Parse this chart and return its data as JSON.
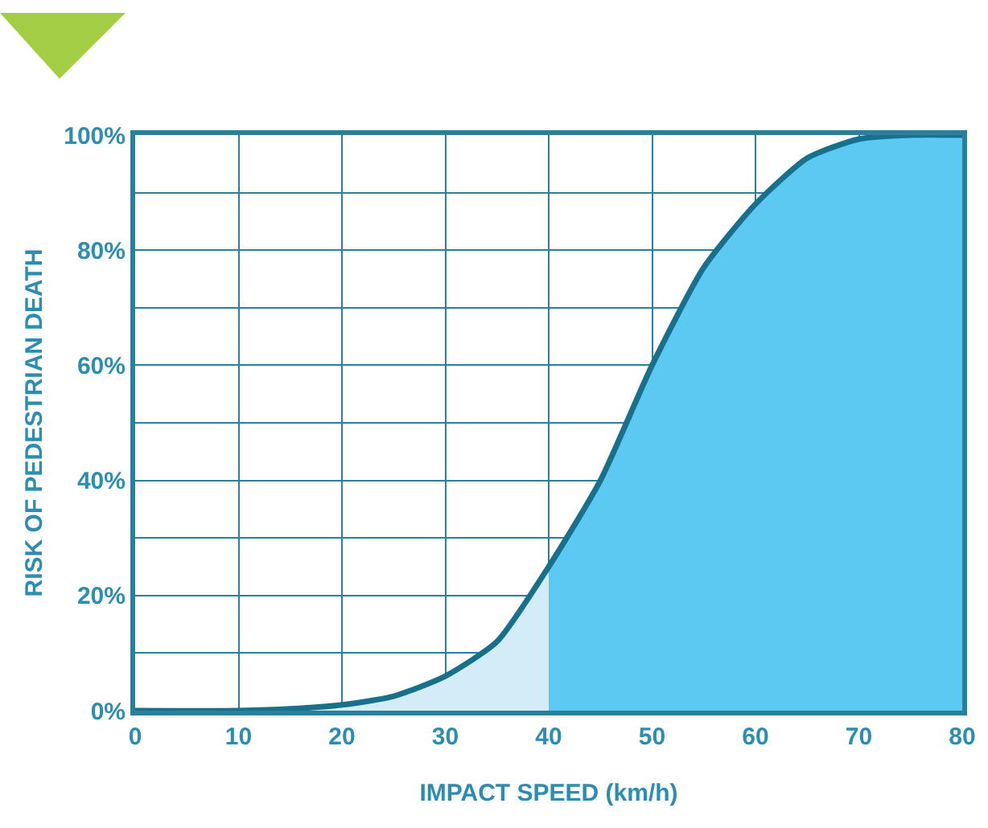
{
  "chart_data": {
    "type": "area",
    "xlabel": "IMPACT SPEED (km/h)",
    "ylabel": "RISK OF PEDESTRIAN DEATH",
    "xlim": [
      0,
      80
    ],
    "xticks": [
      0,
      10,
      20,
      30,
      40,
      50,
      60,
      70,
      80
    ],
    "ylim": [
      0,
      100
    ],
    "yticks": [
      {
        "value": 0,
        "label": "0%"
      },
      {
        "value": 10,
        "label": null
      },
      {
        "value": 20,
        "label": "20%"
      },
      {
        "value": 30,
        "label": null
      },
      {
        "value": 40,
        "label": "40%"
      },
      {
        "value": 50,
        "label": null
      },
      {
        "value": 60,
        "label": "60%"
      },
      {
        "value": 70,
        "label": null
      },
      {
        "value": 80,
        "label": "80%"
      },
      {
        "value": 90,
        "label": null
      },
      {
        "value": 100,
        "label": "100%"
      }
    ],
    "grid": true,
    "series": [
      {
        "color": "#d4ebf8",
        "x": [
          0,
          10,
          15,
          20,
          25,
          30,
          35,
          40
        ],
        "values": [
          0,
          0,
          0.3,
          1,
          2.5,
          6,
          12,
          25
        ]
      },
      {
        "color": "#5bc9f1",
        "x": [
          40,
          45,
          50,
          55,
          60,
          65,
          70,
          75,
          80
        ],
        "values": [
          25,
          40,
          60,
          77,
          88,
          96,
          99.3,
          100,
          100
        ]
      },
      {
        "type": "line",
        "color": "#17718d",
        "x": [
          0,
          10,
          15,
          20,
          25,
          30,
          35,
          40,
          45,
          50,
          55,
          60,
          65,
          70,
          75,
          80
        ],
        "values": [
          0,
          0,
          0.3,
          1,
          2.5,
          6,
          12,
          25,
          40,
          60,
          77,
          88,
          96,
          99.3,
          100,
          100
        ]
      }
    ]
  }
}
